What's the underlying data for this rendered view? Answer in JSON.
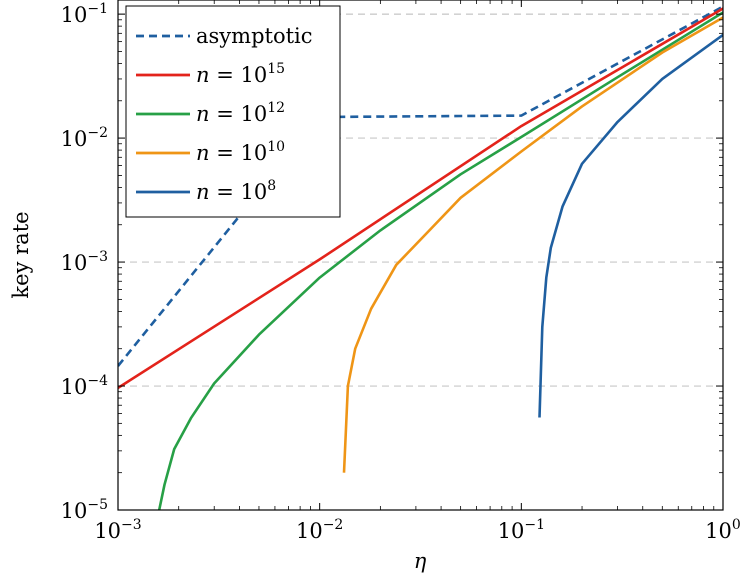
{
  "chart_data": {
    "type": "line",
    "xlabel": "η",
    "ylabel": "key rate",
    "xscale": "log",
    "yscale": "log",
    "xlim": [
      0.001,
      1
    ],
    "ylim": [
      1e-05,
      0.13
    ],
    "grid": "horizontal dashed",
    "legend_position": "top-left",
    "x_ticks": [
      {
        "value": 0.001,
        "base": "10",
        "exp": "−3"
      },
      {
        "value": 0.01,
        "base": "10",
        "exp": "−2"
      },
      {
        "value": 0.1,
        "base": "10",
        "exp": "−1"
      },
      {
        "value": 1,
        "base": "10",
        "exp": "0"
      }
    ],
    "y_ticks": [
      {
        "value": 1e-05,
        "base": "10",
        "exp": "−5"
      },
      {
        "value": 0.0001,
        "base": "10",
        "exp": "−4"
      },
      {
        "value": 0.001,
        "base": "10",
        "exp": "−3"
      },
      {
        "value": 0.01,
        "base": "10",
        "exp": "−2"
      },
      {
        "value": 0.1,
        "base": "10",
        "exp": "−1"
      }
    ],
    "series": [
      {
        "name": "asymptotic",
        "legend_prefix": "",
        "legend_base": "asymptotic",
        "legend_exp": "",
        "color": "#1f5fa0",
        "dash": "8,5",
        "points": [
          [
            0.001,
            0.000145
          ],
          [
            0.01,
            0.0148
          ],
          [
            0.1,
            0.0152
          ],
          [
            1,
            0.115
          ]
        ]
      },
      {
        "name": "n = 10^15",
        "legend_prefix": "n = ",
        "legend_base": "10",
        "legend_exp": "15",
        "color": "#e3231b",
        "dash": "",
        "points": [
          [
            0.001,
            9.65e-05
          ],
          [
            0.01,
            0.00105
          ],
          [
            0.1,
            0.0125
          ],
          [
            1,
            0.111
          ]
        ]
      },
      {
        "name": "n = 10^12",
        "legend_prefix": "n = ",
        "legend_base": "10",
        "legend_exp": "12",
        "color": "#27a046",
        "dash": "",
        "points": [
          [
            0.0016,
            1e-05
          ],
          [
            0.0017,
            1.6e-05
          ],
          [
            0.0019,
            3.1e-05
          ],
          [
            0.0023,
            5.5e-05
          ],
          [
            0.003,
            0.000105
          ],
          [
            0.005,
            0.00026
          ],
          [
            0.01,
            0.00075
          ],
          [
            0.02,
            0.0018
          ],
          [
            0.05,
            0.0051
          ],
          [
            0.1,
            0.0102
          ],
          [
            0.3,
            0.031
          ],
          [
            1,
            0.103
          ]
        ]
      },
      {
        "name": "n = 10^10",
        "legend_prefix": "n = ",
        "legend_base": "10",
        "legend_exp": "10",
        "color": "#ef9516",
        "dash": "",
        "points": [
          [
            0.0132,
            2e-05
          ],
          [
            0.0138,
            0.0001
          ],
          [
            0.015,
            0.0002
          ],
          [
            0.018,
            0.00042
          ],
          [
            0.024,
            0.00095
          ],
          [
            0.035,
            0.0018
          ],
          [
            0.05,
            0.0033
          ],
          [
            0.1,
            0.0078
          ],
          [
            0.2,
            0.018
          ],
          [
            0.5,
            0.049
          ],
          [
            1,
            0.094
          ]
        ]
      },
      {
        "name": "n = 10^8",
        "legend_prefix": "n = ",
        "legend_base": "10",
        "legend_exp": "8",
        "color": "#1f5fa0",
        "dash": "",
        "points": [
          [
            0.123,
            5.57e-05
          ],
          [
            0.127,
            0.0003
          ],
          [
            0.133,
            0.00075
          ],
          [
            0.14,
            0.0013
          ],
          [
            0.16,
            0.0028
          ],
          [
            0.2,
            0.0062
          ],
          [
            0.3,
            0.0135
          ],
          [
            0.5,
            0.03
          ],
          [
            1,
            0.068
          ]
        ]
      }
    ]
  }
}
